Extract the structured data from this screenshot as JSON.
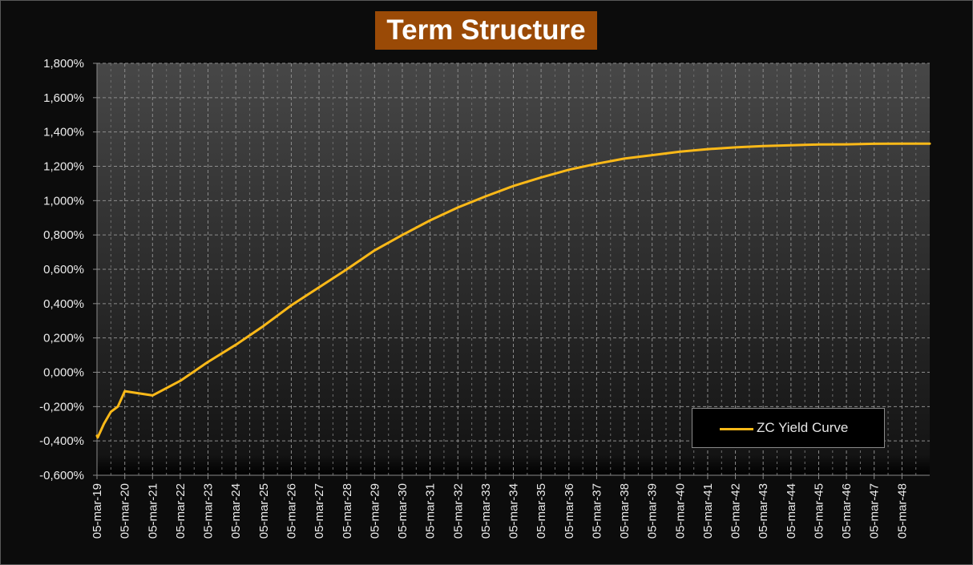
{
  "chart_data": {
    "type": "line",
    "title": "Term Structure",
    "xlabel": "",
    "ylabel": "",
    "ylim": [
      -0.6,
      1.8
    ],
    "y_tick_step": 0.2,
    "y_ticks": [
      "-0,600%",
      "-0,400%",
      "-0,200%",
      "0,000%",
      "0,200%",
      "0,400%",
      "0,600%",
      "0,800%",
      "1,000%",
      "1,200%",
      "1,400%",
      "1,600%",
      "1,800%"
    ],
    "x_range": [
      "05-mar-19",
      "2049-03-05"
    ],
    "x_ticks": [
      "05-mar-19",
      "05-mar-20",
      "05-mar-21",
      "05-mar-22",
      "05-mar-23",
      "05-mar-24",
      "05-mar-25",
      "05-mar-26",
      "05-mar-27",
      "05-mar-28",
      "05-mar-29",
      "05-mar-30",
      "05-mar-31",
      "05-mar-32",
      "05-mar-33",
      "05-mar-34",
      "05-mar-35",
      "05-mar-36",
      "05-mar-37",
      "05-mar-38",
      "05-mar-39",
      "05-mar-40",
      "05-mar-41",
      "05-mar-42",
      "05-mar-43",
      "05-mar-44",
      "05-mar-45",
      "05-mar-46",
      "05-mar-47",
      "05-mar-48"
    ],
    "grid": true,
    "legend_position": "bottom-right",
    "series": [
      {
        "name": "ZC Yield Curve",
        "color": "#fcb918",
        "x": [
          "2019-03-05",
          "2019-03-15",
          "2019-06-05",
          "2019-09-05",
          "2019-12-05",
          "2020-03-05",
          "2021-03-05",
          "2022-03-05",
          "2023-03-05",
          "2024-03-05",
          "2025-03-05",
          "2026-03-05",
          "2027-03-05",
          "2028-03-05",
          "2029-03-05",
          "2030-03-05",
          "2031-03-05",
          "2032-03-05",
          "2033-03-05",
          "2034-03-05",
          "2035-03-05",
          "2036-03-05",
          "2037-03-05",
          "2038-03-05",
          "2039-03-05",
          "2040-03-05",
          "2041-03-05",
          "2042-03-05",
          "2043-03-05",
          "2044-03-05",
          "2045-03-05",
          "2046-03-05",
          "2047-03-05",
          "2048-03-05",
          "2049-03-05"
        ],
        "values": [
          -0.37,
          -0.38,
          -0.3,
          -0.23,
          -0.2,
          -0.11,
          -0.135,
          -0.05,
          0.06,
          0.16,
          0.27,
          0.39,
          0.495,
          0.6,
          0.71,
          0.8,
          0.885,
          0.96,
          1.025,
          1.085,
          1.135,
          1.18,
          1.215,
          1.245,
          1.265,
          1.285,
          1.3,
          1.31,
          1.318,
          1.323,
          1.327,
          1.328,
          1.331,
          1.332,
          1.332
        ]
      }
    ]
  }
}
